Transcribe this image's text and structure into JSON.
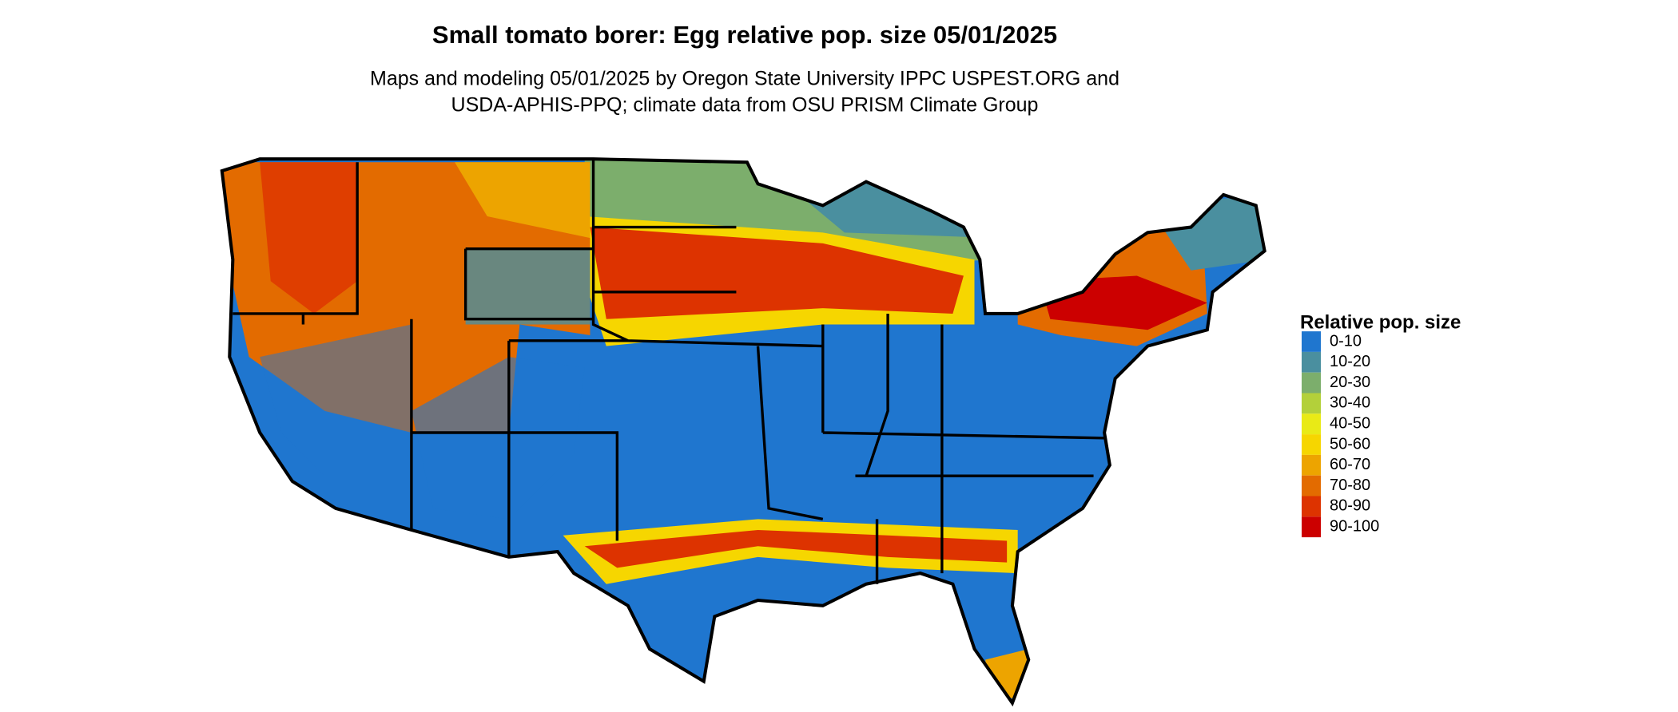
{
  "header": {
    "title": "Small tomato borer: Egg relative pop. size 05/01/2025",
    "subtitle": [
      "Maps and modeling 05/01/2025 by Oregon State University IPPC USPEST.ORG and",
      "USDA-APHIS-PPQ; climate data from OSU PRISM Climate Group"
    ]
  },
  "legend": {
    "title": "Relative pop. size",
    "items": [
      {
        "label": "0-10",
        "color": "#1f76cf"
      },
      {
        "label": "10-20",
        "color": "#4a8f9f"
      },
      {
        "label": "20-30",
        "color": "#7cae6c"
      },
      {
        "label": "30-40",
        "color": "#b3d03a"
      },
      {
        "label": "40-50",
        "color": "#e9ea16"
      },
      {
        "label": "50-60",
        "color": "#f6d600"
      },
      {
        "label": "60-70",
        "color": "#eda400"
      },
      {
        "label": "70-80",
        "color": "#e36b00"
      },
      {
        "label": "80-90",
        "color": "#dd3300"
      },
      {
        "label": "90-100",
        "color": "#cc0000"
      }
    ]
  }
}
